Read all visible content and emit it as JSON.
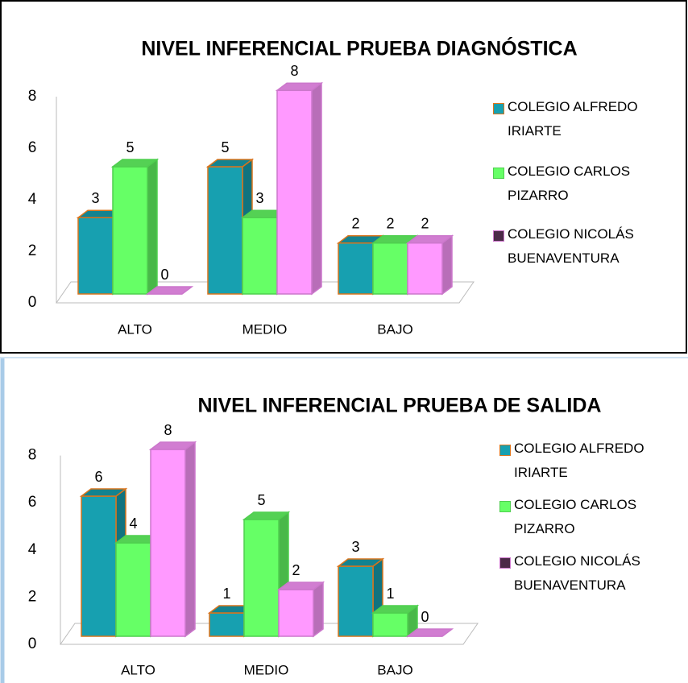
{
  "chart_data": [
    {
      "type": "bar3d",
      "title": "NIVEL INFERENCIAL PRUEBA DIAGNÓSTICA",
      "categories": [
        "ALTO",
        "MEDIO",
        "BAJO"
      ],
      "series": [
        {
          "name": "COLEGIO ALFREDO IRIARTE",
          "color": "#17a0b0",
          "edgecolor": "#d9741c",
          "legend_color": "#17a0b0",
          "values": [
            3,
            5,
            2
          ]
        },
        {
          "name": "COLEGIO CARLOS PIZARRO",
          "color": "#66ff66",
          "edgecolor": "#4fcf4f",
          "legend_color": "#66ff66",
          "values": [
            5,
            3,
            2
          ]
        },
        {
          "name": "COLEGIO NICOLÁS BUENAVENTURA",
          "color": "#ff99ff",
          "edgecolor": "#cc77cc",
          "legend_color": "#4b2a48",
          "values": [
            0,
            8,
            2
          ]
        }
      ],
      "ylim": [
        0,
        8
      ],
      "yticks": [
        0,
        2,
        4,
        6,
        8
      ],
      "grid": false,
      "legend": "right"
    },
    {
      "type": "bar3d",
      "title": "NIVEL INFERENCIAL PRUEBA DE SALIDA",
      "categories": [
        "ALTO",
        "MEDIO",
        "BAJO"
      ],
      "series": [
        {
          "name": "COLEGIO ALFREDO IRIARTE",
          "color": "#17a0b0",
          "edgecolor": "#d9741c",
          "legend_color": "#17a0b0",
          "values": [
            6,
            1,
            3
          ]
        },
        {
          "name": "COLEGIO CARLOS PIZARRO",
          "color": "#66ff66",
          "edgecolor": "#4fcf4f",
          "legend_color": "#66ff66",
          "values": [
            4,
            5,
            1
          ]
        },
        {
          "name": "COLEGIO NICOLÁS BUENAVENTURA",
          "color": "#ff99ff",
          "edgecolor": "#cc77cc",
          "legend_color": "#4b2a48",
          "values": [
            8,
            2,
            0
          ]
        }
      ],
      "ylim": [
        0,
        8
      ],
      "yticks": [
        0,
        2,
        4,
        6,
        8
      ],
      "grid": false,
      "legend": "right"
    }
  ]
}
